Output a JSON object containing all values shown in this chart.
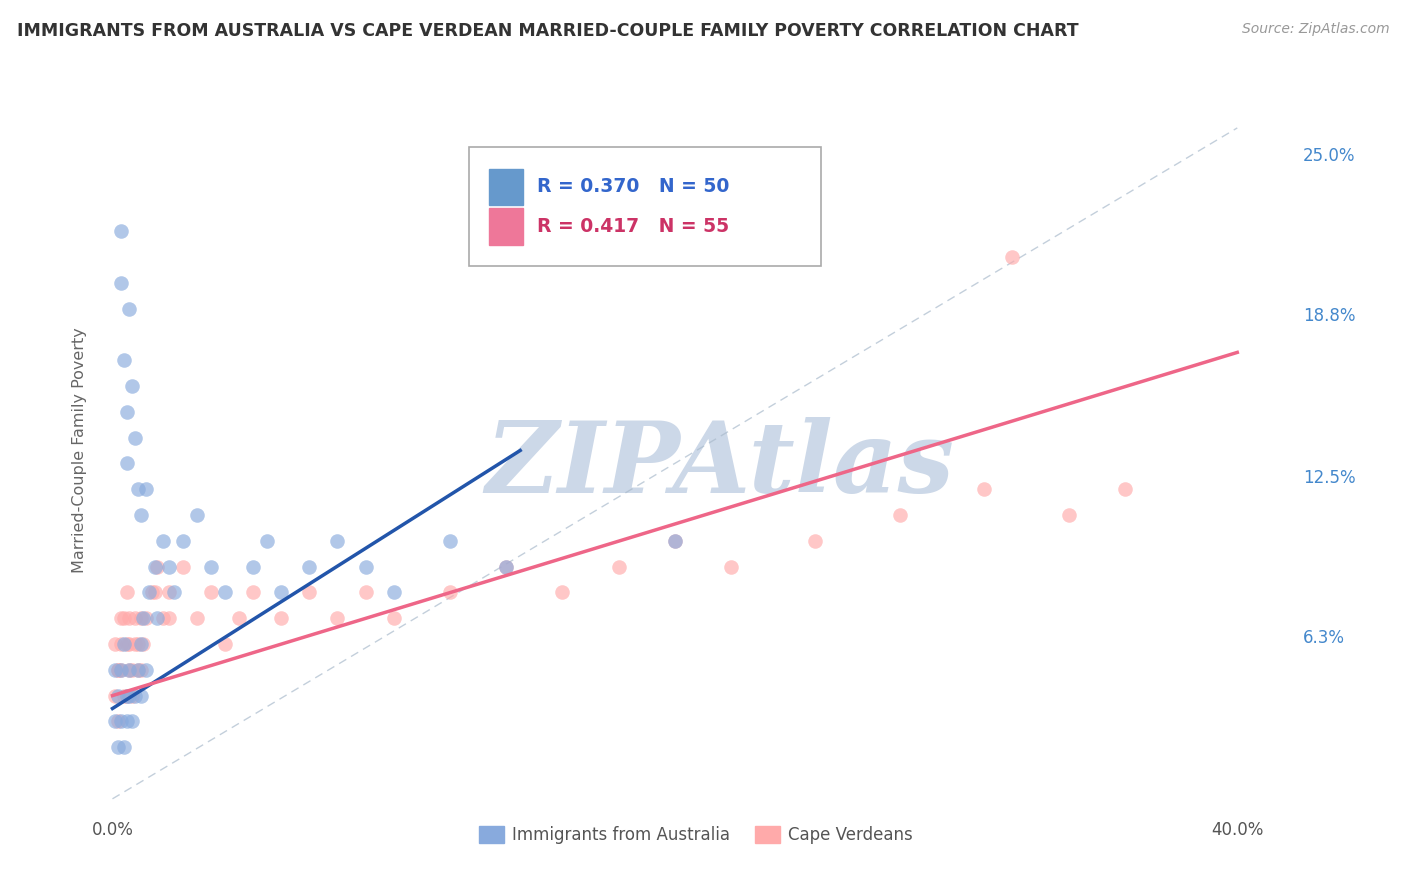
{
  "title": "IMMIGRANTS FROM AUSTRALIA VS CAPE VERDEAN MARRIED-COUPLE FAMILY POVERTY CORRELATION CHART",
  "source": "Source: ZipAtlas.com",
  "ylabel": "Married-Couple Family Poverty",
  "xlim": [
    -0.005,
    0.42
  ],
  "ylim": [
    -0.005,
    0.275
  ],
  "xtick_positions": [
    0.0,
    0.4
  ],
  "xticklabels": [
    "0.0%",
    "40.0%"
  ],
  "ytick_vals_right": [
    0.063,
    0.125,
    0.188,
    0.25
  ],
  "ytick_labels_right": [
    "6.3%",
    "12.5%",
    "18.8%",
    "25.0%"
  ],
  "legend_r1": "R = 0.370   N = 50",
  "legend_r2": "R = 0.417   N = 55",
  "legend_color1": "#6699cc",
  "legend_color2": "#ee7799",
  "legend_text_color1": "#3366cc",
  "legend_text_color2": "#cc3366",
  "bottom_legend": [
    "Immigrants from Australia",
    "Cape Verdeans"
  ],
  "scatter_blue_color": "#88aadd",
  "scatter_pink_color": "#ffaaaa",
  "blue_trend_color": "#2255aa",
  "pink_trend_color": "#ee6688",
  "ref_line_color": "#aabbcc",
  "watermark": "ZIPAtlas",
  "watermark_color": "#ccd8e8",
  "bg_color": "#ffffff",
  "grid_color": "#cccccc",
  "right_tick_color": "#4488cc",
  "title_fontsize": 12.5,
  "source_fontsize": 10,
  "scatter_size": 110,
  "scatter_alpha": 0.65,
  "blue_x": [
    0.001,
    0.001,
    0.002,
    0.002,
    0.003,
    0.003,
    0.004,
    0.004,
    0.005,
    0.005,
    0.006,
    0.006,
    0.007,
    0.008,
    0.009,
    0.01,
    0.01,
    0.011,
    0.012,
    0.013,
    0.015,
    0.016,
    0.018,
    0.02,
    0.022,
    0.025,
    0.03,
    0.035,
    0.04,
    0.05,
    0.055,
    0.06,
    0.07,
    0.08,
    0.09,
    0.1,
    0.12,
    0.14,
    0.2,
    0.003,
    0.003,
    0.004,
    0.005,
    0.005,
    0.006,
    0.007,
    0.008,
    0.009,
    0.01,
    0.012
  ],
  "blue_y": [
    0.03,
    0.05,
    0.04,
    0.02,
    0.05,
    0.03,
    0.02,
    0.06,
    0.04,
    0.03,
    0.05,
    0.04,
    0.03,
    0.04,
    0.05,
    0.06,
    0.04,
    0.07,
    0.05,
    0.08,
    0.09,
    0.07,
    0.1,
    0.09,
    0.08,
    0.1,
    0.11,
    0.09,
    0.08,
    0.09,
    0.1,
    0.08,
    0.09,
    0.1,
    0.09,
    0.08,
    0.1,
    0.09,
    0.1,
    0.22,
    0.2,
    0.17,
    0.15,
    0.13,
    0.19,
    0.16,
    0.14,
    0.12,
    0.11,
    0.12
  ],
  "pink_x": [
    0.001,
    0.001,
    0.002,
    0.002,
    0.003,
    0.003,
    0.004,
    0.005,
    0.005,
    0.006,
    0.006,
    0.007,
    0.008,
    0.009,
    0.01,
    0.01,
    0.011,
    0.012,
    0.014,
    0.016,
    0.018,
    0.02,
    0.025,
    0.03,
    0.035,
    0.04,
    0.045,
    0.05,
    0.06,
    0.07,
    0.08,
    0.09,
    0.1,
    0.12,
    0.14,
    0.16,
    0.18,
    0.2,
    0.22,
    0.25,
    0.28,
    0.31,
    0.34,
    0.36,
    0.002,
    0.003,
    0.004,
    0.005,
    0.006,
    0.007,
    0.008,
    0.009,
    0.015,
    0.02,
    0.32
  ],
  "pink_y": [
    0.04,
    0.06,
    0.05,
    0.03,
    0.07,
    0.05,
    0.04,
    0.06,
    0.04,
    0.07,
    0.05,
    0.04,
    0.06,
    0.05,
    0.07,
    0.05,
    0.06,
    0.07,
    0.08,
    0.09,
    0.07,
    0.08,
    0.09,
    0.07,
    0.08,
    0.06,
    0.07,
    0.08,
    0.07,
    0.08,
    0.07,
    0.08,
    0.07,
    0.08,
    0.09,
    0.08,
    0.09,
    0.1,
    0.09,
    0.1,
    0.11,
    0.12,
    0.11,
    0.12,
    0.05,
    0.06,
    0.07,
    0.08,
    0.06,
    0.05,
    0.07,
    0.06,
    0.08,
    0.07,
    0.21
  ],
  "blue_trend_x": [
    0.0,
    0.145
  ],
  "blue_trend_y": [
    0.035,
    0.135
  ],
  "pink_trend_x": [
    0.0,
    0.4
  ],
  "pink_trend_y": [
    0.04,
    0.173
  ]
}
